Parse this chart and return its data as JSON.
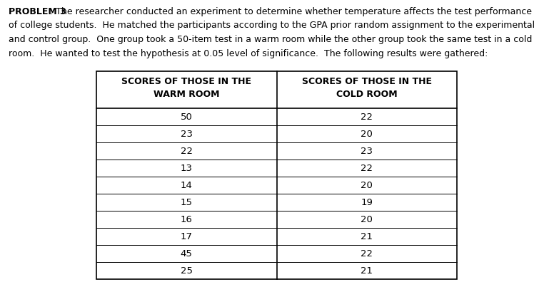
{
  "problem_label": "PROBLEM 3",
  "problem_colon": ": The researcher conducted an experiment to determine whether temperature affects the test performance",
  "problem_lines": [
    "of college students.  He matched the participants according to the GPA prior random assignment to the experimental",
    "and control group.  One group took a 50-item test in a warm room while the other group took the same test in a cold",
    "room.  He wanted to test the hypothesis at 0.05 level of significance.  The following results were gathered:"
  ],
  "col1_header_line1": "SCORES OF THOSE IN THE",
  "col1_header_line2": "WARM ROOM",
  "col2_header_line1": "SCORES OF THOSE IN THE",
  "col2_header_line2": "COLD ROOM",
  "warm_room": [
    50,
    23,
    22,
    13,
    14,
    15,
    16,
    17,
    45,
    25
  ],
  "cold_room": [
    22,
    20,
    23,
    22,
    20,
    19,
    20,
    21,
    22,
    21
  ],
  "bg_color": "#ffffff",
  "text_color": "#000000",
  "table_border_color": "#000000",
  "font_size_text": 9.0,
  "font_size_table": 9.5,
  "font_size_header": 9.0
}
